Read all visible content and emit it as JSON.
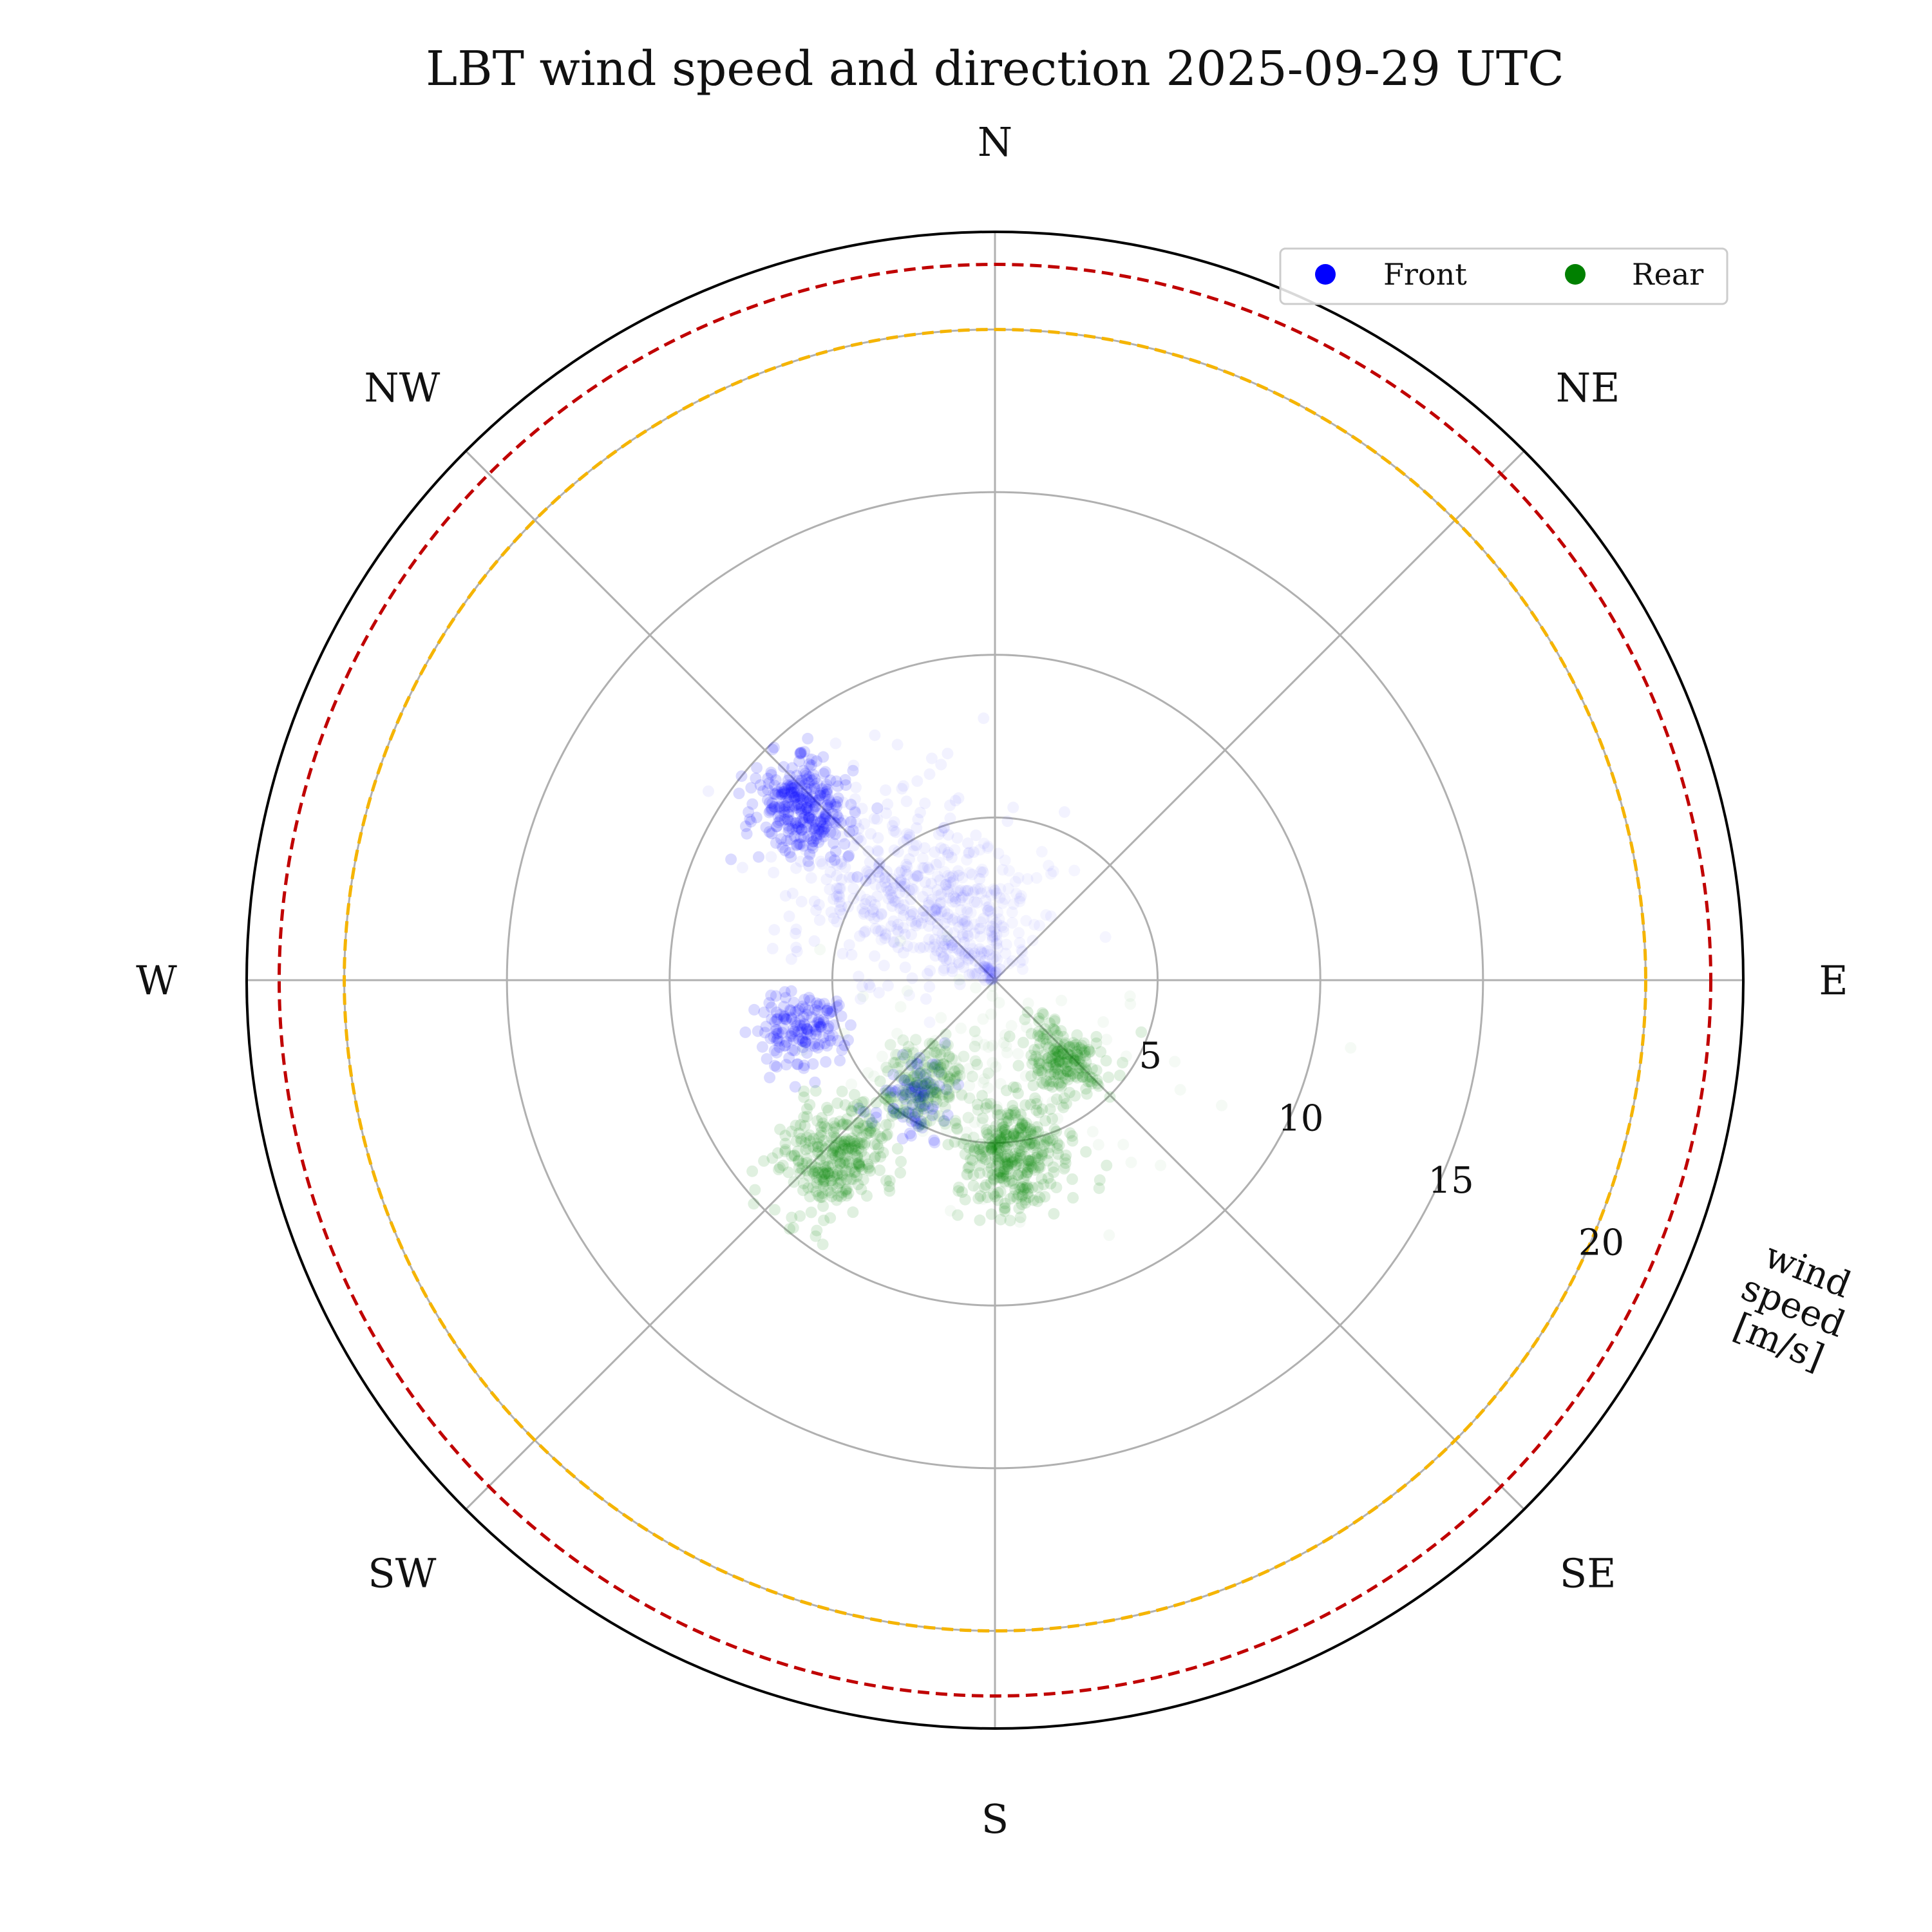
{
  "chart_data": {
    "type": "scatter",
    "projection": "polar",
    "title": "LBT wind speed and direction 2025-09-29 UTC",
    "theta_zero": "north",
    "theta_direction": "clockwise",
    "direction_labels": [
      "N",
      "NE",
      "E",
      "SE",
      "S",
      "SW",
      "W",
      "NW"
    ],
    "r_label": "wind\nspeed\n[m/s]",
    "r_ticks": [
      5,
      10,
      15,
      20
    ],
    "r_tick_labels": [
      "5",
      "10",
      "15",
      "20"
    ],
    "r_max": 23,
    "reference_circles": [
      {
        "speed": 20,
        "color": "#f5b400",
        "style": "dashed"
      },
      {
        "speed": 22,
        "color": "#c00000",
        "style": "dashed"
      }
    ],
    "legend": {
      "location": "upper right",
      "entries": [
        "Front",
        "Rear"
      ]
    },
    "series": [
      {
        "name": "Front",
        "color": "#0000ff",
        "clusters": [
          {
            "dir_deg": 312,
            "speed": 8.0,
            "spread_dir": 5,
            "spread_speed": 0.8,
            "weight": 0.26,
            "alpha": 0.14
          },
          {
            "dir_deg": 313,
            "speed": 4.0,
            "spread_dir": 22,
            "spread_speed": 2.0,
            "weight": 0.36,
            "alpha": 0.05
          },
          {
            "dir_deg": 255,
            "speed": 6.2,
            "spread_dir": 5,
            "spread_speed": 0.7,
            "weight": 0.14,
            "alpha": 0.14
          },
          {
            "dir_deg": 215,
            "speed": 4.3,
            "spread_dir": 7,
            "spread_speed": 0.7,
            "weight": 0.08,
            "alpha": 0.14
          },
          {
            "dir_deg": 350,
            "speed": 2.2,
            "spread_dir": 30,
            "spread_speed": 1.2,
            "weight": 0.16,
            "alpha": 0.04
          }
        ]
      },
      {
        "name": "Rear",
        "color": "#008000",
        "clusters": [
          {
            "dir_deg": 222,
            "speed": 7.2,
            "spread_dir": 6,
            "spread_speed": 1.0,
            "weight": 0.28,
            "alpha": 0.12
          },
          {
            "dir_deg": 173,
            "speed": 5.5,
            "spread_dir": 8,
            "spread_speed": 0.9,
            "weight": 0.3,
            "alpha": 0.12
          },
          {
            "dir_deg": 140,
            "speed": 3.3,
            "spread_dir": 9,
            "spread_speed": 0.7,
            "weight": 0.17,
            "alpha": 0.12
          },
          {
            "dir_deg": 212,
            "speed": 3.8,
            "spread_dir": 10,
            "spread_speed": 0.7,
            "weight": 0.15,
            "alpha": 0.1
          },
          {
            "dir_deg": 180,
            "speed": 4.0,
            "spread_dir": 40,
            "spread_speed": 2.0,
            "weight": 0.1,
            "alpha": 0.04
          }
        ]
      }
    ]
  }
}
